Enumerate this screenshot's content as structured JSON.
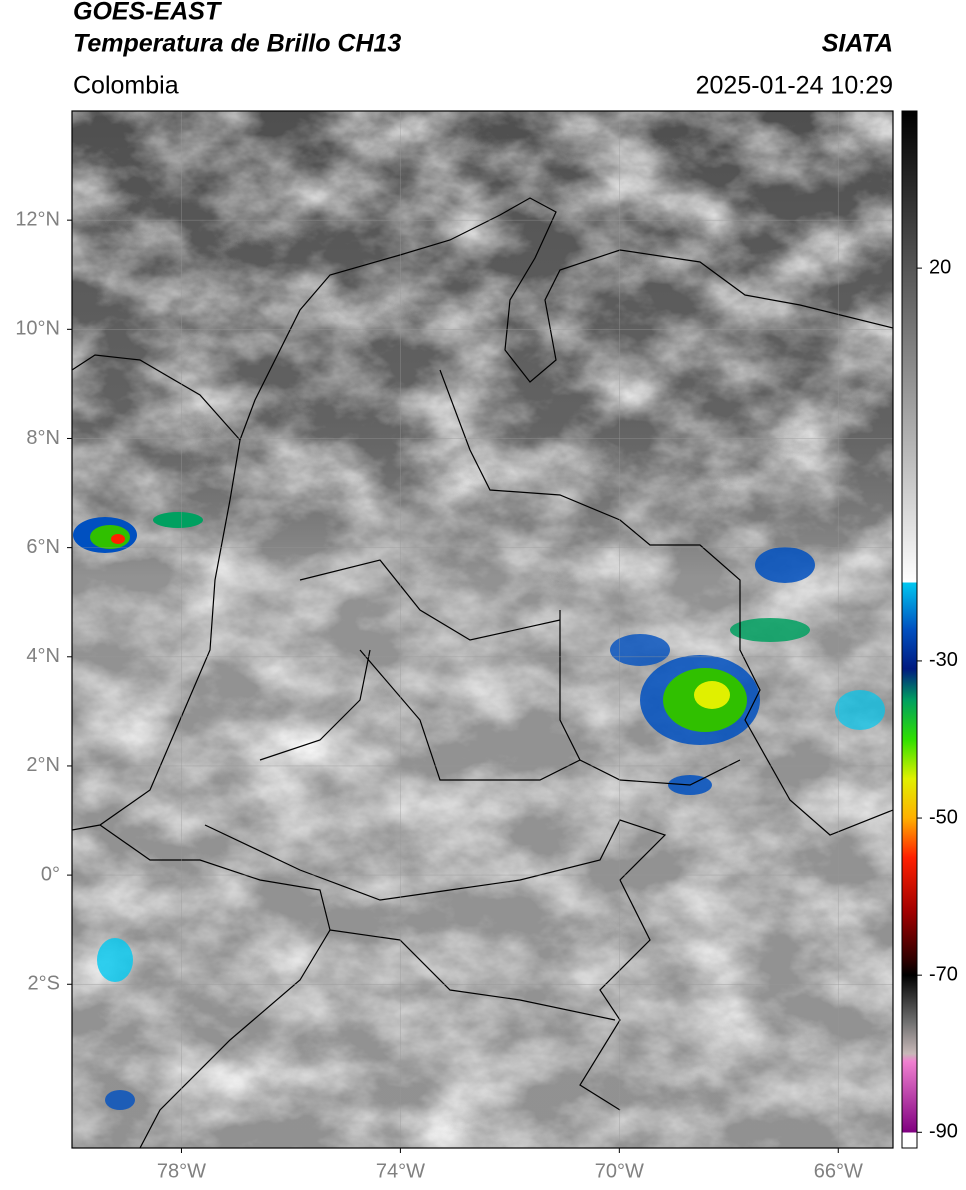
{
  "header": {
    "title": "GOES-EAST",
    "subtitle": "Temperatura de Brillo CH13",
    "source": "SIATA",
    "region": "Colombia",
    "datetime": "2025-01-24 10:29"
  },
  "map": {
    "xlim": [
      -80,
      -65
    ],
    "ylim": [
      -5,
      14
    ],
    "grid": true,
    "xticks": [
      {
        "value": -78,
        "label": "78°W"
      },
      {
        "value": -74,
        "label": "74°W"
      },
      {
        "value": -70,
        "label": "70°W"
      },
      {
        "value": -66,
        "label": "66°W"
      }
    ],
    "yticks": [
      {
        "value": 12,
        "label": "12°N"
      },
      {
        "value": 10,
        "label": "10°N"
      },
      {
        "value": 8,
        "label": "8°N"
      },
      {
        "value": 6,
        "label": "6°N"
      },
      {
        "value": 4,
        "label": "4°N"
      },
      {
        "value": 2,
        "label": "2°N"
      },
      {
        "value": 0,
        "label": "0°"
      },
      {
        "value": -2,
        "label": "2°S"
      }
    ]
  },
  "colorbar": {
    "lim": [
      -92,
      40
    ],
    "ticks": [
      20,
      -30,
      -50,
      -70,
      -90
    ],
    "colormap": [
      {
        "value": 40,
        "color": "#000000"
      },
      {
        "value": -20,
        "color": "#ffffff"
      },
      {
        "value": -20,
        "color": "#00c8f0"
      },
      {
        "value": -26,
        "color": "#0050c0"
      },
      {
        "value": -31,
        "color": "#001a80"
      },
      {
        "value": -35,
        "color": "#00a060"
      },
      {
        "value": -40,
        "color": "#30e000"
      },
      {
        "value": -45,
        "color": "#e0f000"
      },
      {
        "value": -50,
        "color": "#ffb000"
      },
      {
        "value": -55,
        "color": "#ff2000"
      },
      {
        "value": -62,
        "color": "#a00000"
      },
      {
        "value": -68,
        "color": "#300000"
      },
      {
        "value": -70,
        "color": "#000000"
      },
      {
        "value": -76,
        "color": "#707070"
      },
      {
        "value": -80,
        "color": "#c8b8b8"
      },
      {
        "value": -81,
        "color": "#f080d0"
      },
      {
        "value": -90,
        "color": "#800080"
      },
      {
        "value": -90,
        "color": "#ffffff"
      },
      {
        "value": -92,
        "color": "#ffffff"
      }
    ]
  }
}
